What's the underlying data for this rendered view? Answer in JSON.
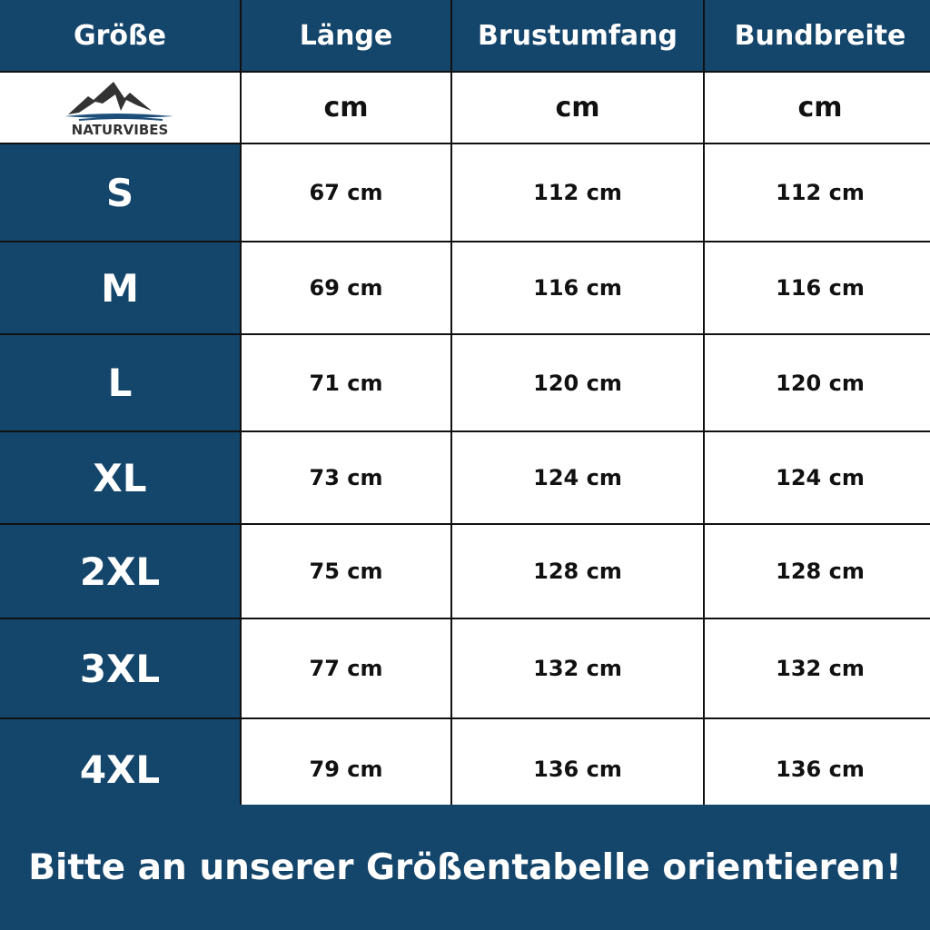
{
  "colors": {
    "header_bg": "#14456b",
    "cell_bg": "#ffffff",
    "border": "#111111"
  },
  "headers": [
    "Größe",
    "Länge",
    "Brustumfang",
    "Bundbreite"
  ],
  "units": [
    "cm",
    "cm",
    "cm"
  ],
  "logo": {
    "text": "NATURVIBES",
    "icon": "mountain-logo"
  },
  "rows": [
    {
      "size": "S",
      "laenge": "67 cm",
      "brust": "112 cm",
      "bund": "112 cm"
    },
    {
      "size": "M",
      "laenge": "69 cm",
      "brust": "116 cm",
      "bund": "116 cm"
    },
    {
      "size": "L",
      "laenge": "71 cm",
      "brust": "120 cm",
      "bund": "120 cm"
    },
    {
      "size": "XL",
      "laenge": "73 cm",
      "brust": "124 cm",
      "bund": "124 cm"
    },
    {
      "size": "2XL",
      "laenge": "75 cm",
      "brust": "128 cm",
      "bund": "128 cm"
    },
    {
      "size": "3XL",
      "laenge": "77 cm",
      "brust": "132 cm",
      "bund": "132 cm"
    },
    {
      "size": "4XL",
      "laenge": "79 cm",
      "brust": "136 cm",
      "bund": "136 cm"
    }
  ],
  "footer": "Bitte an unserer Größentabelle orientieren!"
}
